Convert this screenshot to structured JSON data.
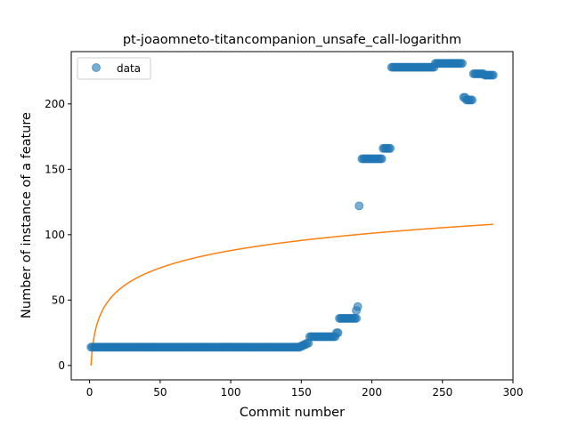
{
  "chart_data": {
    "type": "scatter",
    "title": "pt-joaomneto-titancompanion_unsafe_call-logarithm",
    "xlabel": "Commit number",
    "ylabel": "Number of instance of a feature",
    "xlim": [
      -13,
      300
    ],
    "ylim": [
      -11,
      240
    ],
    "xticks": [
      0,
      50,
      100,
      150,
      200,
      250,
      300
    ],
    "yticks": [
      0,
      50,
      100,
      150,
      200
    ],
    "grid": false,
    "legend": {
      "placement": "upper-left",
      "entries": [
        "data"
      ]
    },
    "colors": {
      "data": "#1f77b4",
      "fit": "#ff7f0e"
    },
    "series": [
      {
        "name": "data",
        "kind": "scatter",
        "segments": [
          {
            "x_from": 1,
            "x_to": 149,
            "y": 14
          },
          {
            "x_from": 150,
            "x_to": 151,
            "y": 15
          },
          {
            "x_from": 152,
            "x_to": 153,
            "y": 16
          },
          {
            "x_from": 154,
            "x_to": 155,
            "y": 17
          },
          {
            "x_from": 156,
            "x_to": 174,
            "y": 22
          },
          {
            "x_from": 175,
            "x_to": 176,
            "y": 25
          },
          {
            "x_from": 177,
            "x_to": 189,
            "y": 36
          },
          {
            "x_from": 193,
            "x_to": 207,
            "y": 158
          },
          {
            "x_from": 208,
            "x_to": 213,
            "y": 166
          },
          {
            "x_from": 214,
            "x_to": 244,
            "y": 228
          },
          {
            "x_from": 245,
            "x_to": 264,
            "y": 231
          },
          {
            "x_from": 265,
            "x_to": 266,
            "y": 205
          },
          {
            "x_from": 267,
            "x_to": 271,
            "y": 203
          },
          {
            "x_from": 272,
            "x_to": 279,
            "y": 223
          },
          {
            "x_from": 280,
            "x_to": 286,
            "y": 222
          }
        ],
        "points": [
          {
            "x": 189,
            "y": 42
          },
          {
            "x": 190,
            "y": 45
          },
          {
            "x": 191,
            "y": 122
          }
        ]
      },
      {
        "name": "",
        "kind": "line",
        "model": "a + b*ln(x)",
        "a": 0,
        "b": 19.08,
        "x_range": [
          1,
          286
        ]
      }
    ]
  }
}
